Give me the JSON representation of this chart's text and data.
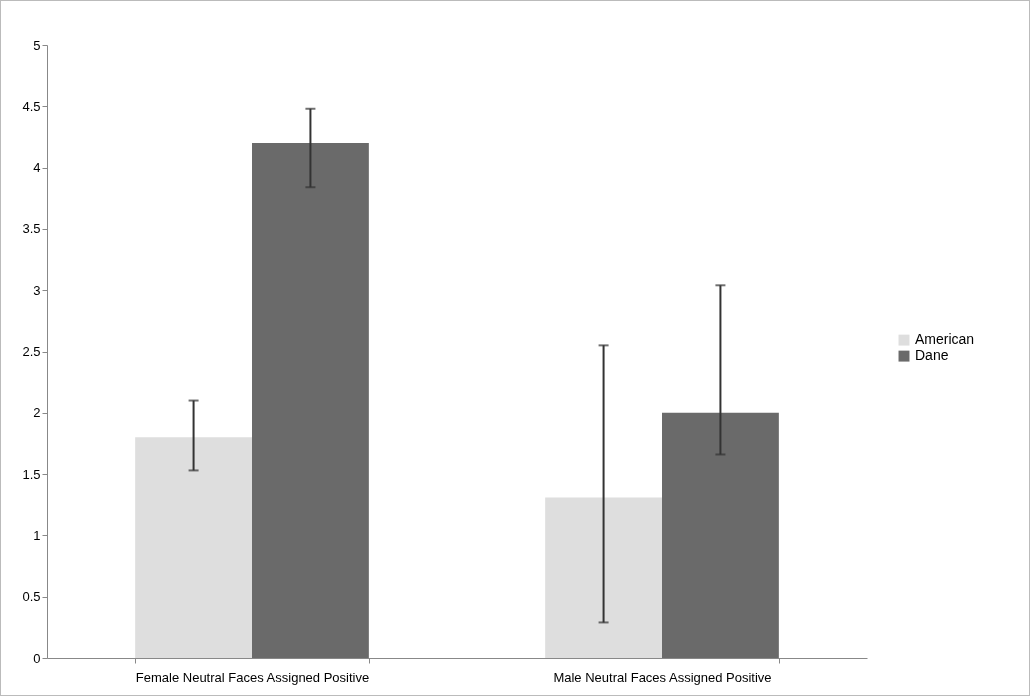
{
  "chart_data": {
    "type": "bar",
    "categories": [
      "Female Neutral Faces Assigned Positive",
      "Male Neutral Faces Assigned Positive"
    ],
    "series": [
      {
        "name": "American",
        "color": "#dedede",
        "values": [
          1.8,
          1.31
        ],
        "errors": [
          [
            1.53,
            2.1
          ],
          [
            0.29,
            2.55
          ]
        ]
      },
      {
        "name": "Dane",
        "color": "#6a6a6a",
        "values": [
          4.2,
          2.0
        ],
        "errors": [
          [
            3.84,
            4.48
          ],
          [
            1.66,
            3.04
          ]
        ]
      }
    ],
    "ylim": [
      0,
      5
    ],
    "yticks": [
      0,
      0.5,
      1,
      1.5,
      2,
      2.5,
      3,
      3.5,
      4,
      4.5,
      5
    ],
    "grid": false,
    "legend": "right"
  }
}
